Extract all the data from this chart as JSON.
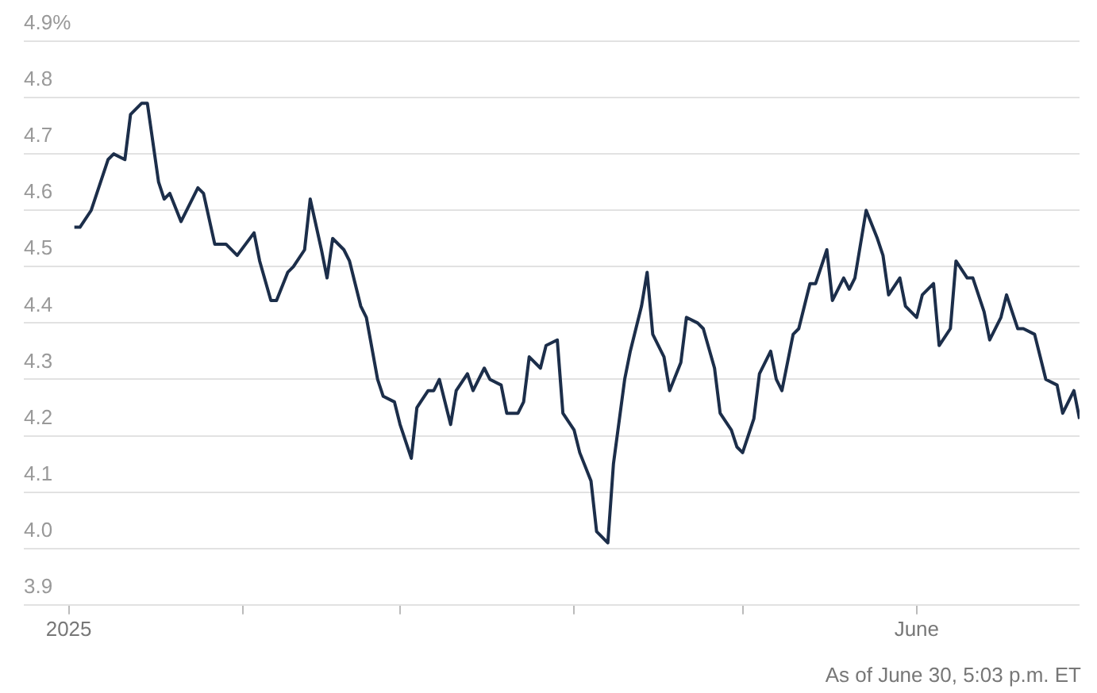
{
  "chart_data": {
    "type": "line",
    "x": [
      "2025-01-02",
      "2025-01-03",
      "2025-01-05",
      "2025-01-08",
      "2025-01-09",
      "2025-01-11",
      "2025-01-12",
      "2025-01-14",
      "2025-01-15",
      "2025-01-17",
      "2025-01-18",
      "2025-01-19",
      "2025-01-21",
      "2025-01-24",
      "2025-01-25",
      "2025-01-27",
      "2025-01-29",
      "2025-01-31",
      "2025-02-03",
      "2025-02-04",
      "2025-02-06",
      "2025-02-07",
      "2025-02-09",
      "2025-02-10",
      "2025-02-12",
      "2025-02-13",
      "2025-02-15",
      "2025-02-16",
      "2025-02-17",
      "2025-02-19",
      "2025-02-20",
      "2025-02-22",
      "2025-02-23",
      "2025-02-25",
      "2025-02-26",
      "2025-02-28",
      "2025-03-01",
      "2025-03-03",
      "2025-03-04",
      "2025-03-06",
      "2025-03-07",
      "2025-03-08",
      "2025-03-10",
      "2025-03-11",
      "2025-03-13",
      "2025-03-14",
      "2025-03-16",
      "2025-03-17",
      "2025-03-19",
      "2025-03-20",
      "2025-03-22",
      "2025-03-23",
      "2025-03-24",
      "2025-03-26",
      "2025-03-27",
      "2025-03-29",
      "2025-03-30",
      "2025-04-01",
      "2025-04-02",
      "2025-04-04",
      "2025-04-05",
      "2025-04-07",
      "2025-04-08",
      "2025-04-10",
      "2025-04-11",
      "2025-04-13",
      "2025-04-14",
      "2025-04-15",
      "2025-04-17",
      "2025-04-18",
      "2025-04-20",
      "2025-04-21",
      "2025-04-23",
      "2025-04-24",
      "2025-04-26",
      "2025-04-27",
      "2025-04-29",
      "2025-04-30",
      "2025-05-01",
      "2025-05-03",
      "2025-05-04",
      "2025-05-06",
      "2025-05-07",
      "2025-05-08",
      "2025-05-10",
      "2025-05-11",
      "2025-05-13",
      "2025-05-14",
      "2025-05-16",
      "2025-05-17",
      "2025-05-19",
      "2025-05-20",
      "2025-05-21",
      "2025-05-23",
      "2025-05-25",
      "2025-05-26",
      "2025-05-27",
      "2025-05-29",
      "2025-05-30",
      "2025-06-01",
      "2025-06-02",
      "2025-06-04",
      "2025-06-05",
      "2025-06-07",
      "2025-06-08",
      "2025-06-10",
      "2025-06-11",
      "2025-06-13",
      "2025-06-14",
      "2025-06-16",
      "2025-06-17",
      "2025-06-19",
      "2025-06-20",
      "2025-06-22",
      "2025-06-23",
      "2025-06-24",
      "2025-06-26",
      "2025-06-27",
      "2025-06-29",
      "2025-06-30"
    ],
    "series": [
      {
        "color": "#1c2e4a",
        "values": [
          4.57,
          4.57,
          4.6,
          4.69,
          4.7,
          4.69,
          4.77,
          4.79,
          4.79,
          4.65,
          4.62,
          4.63,
          4.58,
          4.64,
          4.63,
          4.54,
          4.54,
          4.52,
          4.56,
          4.51,
          4.44,
          4.44,
          4.49,
          4.5,
          4.53,
          4.62,
          4.53,
          4.48,
          4.55,
          4.53,
          4.51,
          4.43,
          4.41,
          4.3,
          4.27,
          4.26,
          4.22,
          4.16,
          4.25,
          4.28,
          4.28,
          4.3,
          4.22,
          4.28,
          4.31,
          4.28,
          4.32,
          4.3,
          4.29,
          4.24,
          4.24,
          4.26,
          4.34,
          4.32,
          4.36,
          4.37,
          4.24,
          4.21,
          4.17,
          4.12,
          4.03,
          4.01,
          4.15,
          4.3,
          4.35,
          4.43,
          4.49,
          4.38,
          4.34,
          4.28,
          4.33,
          4.41,
          4.4,
          4.39,
          4.32,
          4.24,
          4.21,
          4.18,
          4.17,
          4.23,
          4.31,
          4.35,
          4.3,
          4.28,
          4.38,
          4.39,
          4.47,
          4.47,
          4.53,
          4.44,
          4.48,
          4.46,
          4.48,
          4.6,
          4.55,
          4.52,
          4.45,
          4.48,
          4.43,
          4.41,
          4.45,
          4.47,
          4.36,
          4.39,
          4.51,
          4.48,
          4.48,
          4.42,
          4.37,
          4.41,
          4.45,
          4.39,
          4.39,
          4.38,
          4.34,
          4.3,
          4.29,
          4.24,
          4.28,
          4.23
        ]
      }
    ],
    "xlim": [
      "2024-12-24",
      "2025-06-30"
    ],
    "xticks": [
      {
        "value": "2025-01-01",
        "label": "2025"
      },
      {
        "value": "2025-02-01",
        "label": null
      },
      {
        "value": "2025-03-01",
        "label": null
      },
      {
        "value": "2025-04-01",
        "label": null
      },
      {
        "value": "2025-05-01",
        "label": null
      },
      {
        "value": "2025-06-01",
        "label": "June"
      }
    ],
    "ylim": [
      3.9,
      4.9
    ],
    "yticks": [
      3.9,
      {
        "value": 4.0,
        "label": "4.0"
      },
      4.1,
      4.2,
      4.3,
      4.4,
      4.5,
      4.6,
      4.7,
      4.8,
      {
        "value": 4.9,
        "label": "4.9%"
      }
    ],
    "grid": "y",
    "marker": "none",
    "line_style": "solid",
    "annotations": [
      "As of June 30, 5:03 p.m. ET"
    ]
  }
}
